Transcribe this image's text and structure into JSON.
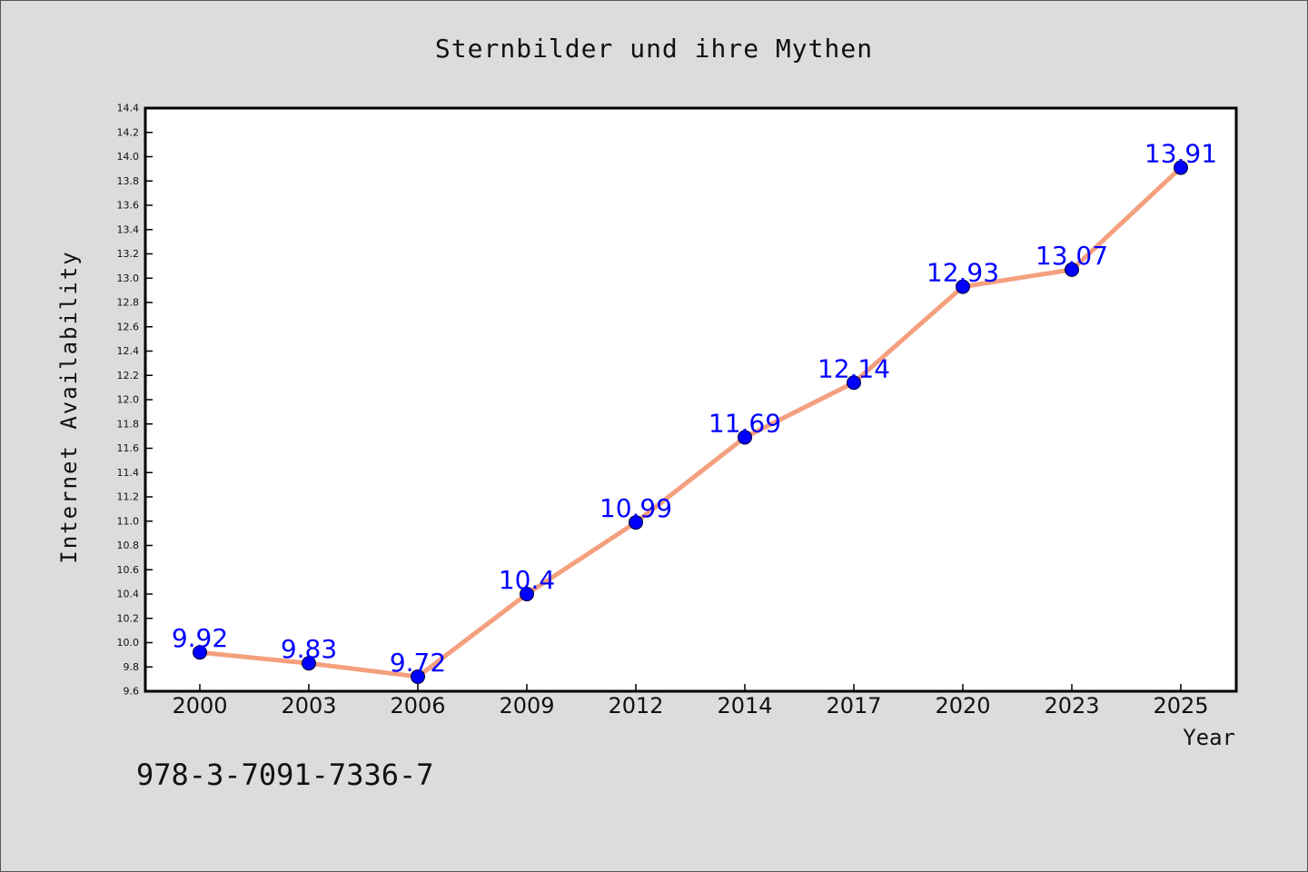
{
  "chart_data": {
    "type": "line",
    "title": "Sternbilder und ihre Mythen",
    "xlabel": "Year",
    "ylabel": "Internet Availability",
    "categories": [
      "2000",
      "2003",
      "2006",
      "2009",
      "2012",
      "2014",
      "2017",
      "2020",
      "2023",
      "2025"
    ],
    "values": [
      9.92,
      9.83,
      9.72,
      10.4,
      10.99,
      11.69,
      12.14,
      12.93,
      13.07,
      13.91
    ],
    "data_labels": [
      "9.92",
      "9.83",
      "9.72",
      "10.4",
      "10.99",
      "11.69",
      "12.14",
      "12.93",
      "13.07",
      "13.91"
    ],
    "yticks": [
      "9.6",
      "9.8",
      "10.0",
      "10.2",
      "10.4",
      "10.6",
      "10.8",
      "11.0",
      "11.2",
      "11.4",
      "11.6",
      "11.8",
      "12.0",
      "12.2",
      "12.4",
      "12.6",
      "12.8",
      "13.0",
      "13.2",
      "13.4",
      "13.6",
      "13.8",
      "14.0",
      "14.2",
      "14.4"
    ],
    "ylim": [
      9.6,
      14.4
    ],
    "grid": false,
    "line_color": "#f4a07e",
    "marker_color": "#0000ff",
    "label_color": "#0000ff"
  },
  "footnote": "978-3-7091-7336-7"
}
